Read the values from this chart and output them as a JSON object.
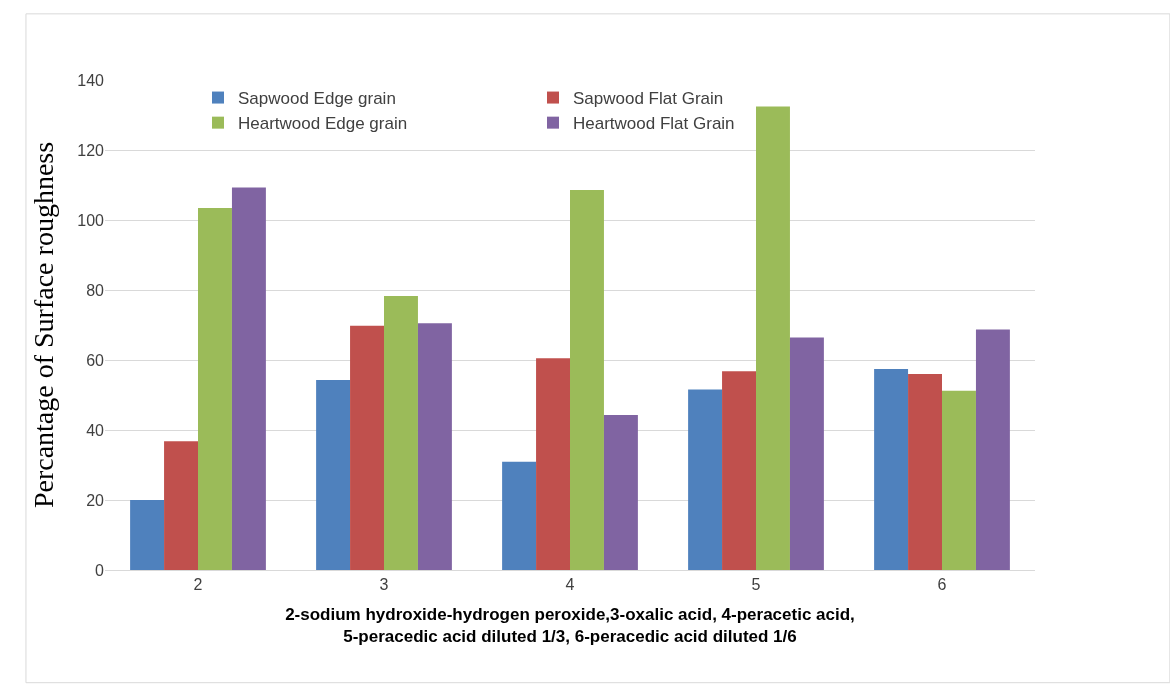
{
  "chart_data": {
    "type": "bar",
    "ylabel": "Percantage of Surface roughness",
    "xlabel": "2-sodium hydroxide-hydrogen peroxide,3-oxalic acid, 4-peracetic acid,\n5-peracedic acid diluted 1/3, 6-peracedic acid diluted 1/6",
    "categories": [
      "2",
      "3",
      "4",
      "5",
      "6"
    ],
    "series": [
      {
        "name": "Sapwood Edge grain",
        "color": "#4f81bd",
        "values": [
          20,
          54.3,
          30.9,
          51.6,
          57.4
        ]
      },
      {
        "name": "Sapwood Flat Grain",
        "color": "#c0504d",
        "values": [
          36.8,
          69.8,
          60.5,
          56.8,
          56.0
        ]
      },
      {
        "name": "Heartwood Edge grain",
        "color": "#9bbb59",
        "values": [
          103.4,
          78.3,
          108.6,
          132.4,
          51.2
        ]
      },
      {
        "name": "Heartwood Flat Grain",
        "color": "#8064a2",
        "values": [
          109.3,
          70.5,
          44.3,
          66.4,
          68.7
        ]
      }
    ],
    "ylim": [
      0,
      140
    ],
    "yticks": [
      0,
      20,
      40,
      60,
      80,
      100,
      120,
      140
    ],
    "grid": "y",
    "legend": "top left"
  }
}
